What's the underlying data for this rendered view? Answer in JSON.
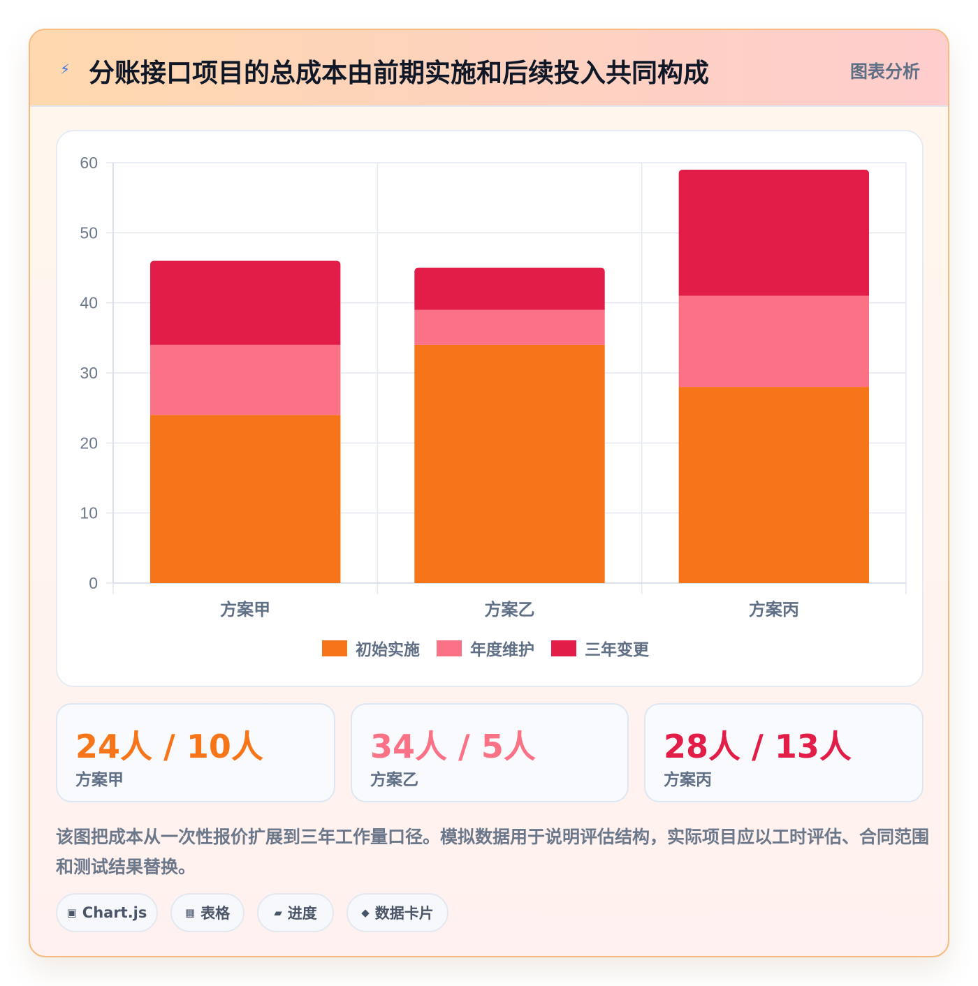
{
  "header": {
    "icon": "bolt-icon",
    "title": "分账接口项目的总成本由前期实施和后续投入共同构成",
    "tag": "图表分析"
  },
  "chart_data": {
    "type": "bar",
    "stacked": true,
    "categories": [
      "方案甲",
      "方案乙",
      "方案丙"
    ],
    "series": [
      {
        "name": "初始实施",
        "values": [
          24,
          34,
          28
        ],
        "color": "#f67519"
      },
      {
        "name": "年度维护",
        "values": [
          10,
          5,
          13
        ],
        "color": "#fb7185"
      },
      {
        "name": "三年变更",
        "values": [
          12,
          6,
          18
        ],
        "color": "#e11d48"
      }
    ],
    "ylim": [
      0,
      60
    ],
    "yticks": [
      0,
      10,
      20,
      30,
      40,
      50,
      60
    ],
    "grid": true,
    "legend": "bottom"
  },
  "stats": [
    {
      "value": "24人 / 10人",
      "label": "方案甲",
      "color": "#f67519"
    },
    {
      "value": "34人 / 5人",
      "label": "方案乙",
      "color": "#fb7185"
    },
    {
      "value": "28人 / 13人",
      "label": "方案丙",
      "color": "#e11d48"
    }
  ],
  "note": "该图把成本从一次性报价扩展到三年工作量口径。模拟数据用于说明评估结构，实际项目应以工时评估、合同范围和测试结果替换。",
  "chips": [
    {
      "icon": "▣",
      "label": "Chart.js"
    },
    {
      "icon": "▦",
      "label": "表格"
    },
    {
      "icon": "▰",
      "label": "进度"
    },
    {
      "icon": "◆",
      "label": "数据卡片"
    }
  ]
}
